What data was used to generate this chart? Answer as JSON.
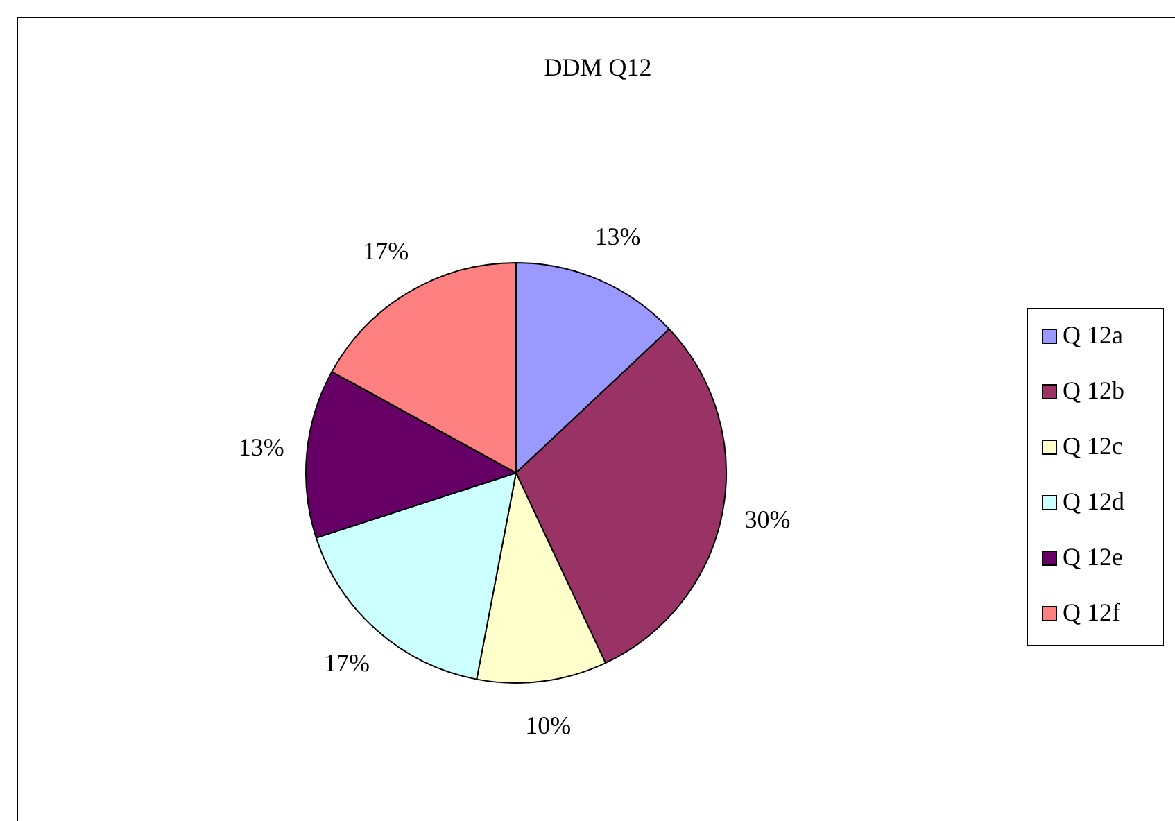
{
  "chart_data": {
    "type": "pie",
    "title": "DDM Q12",
    "categories": [
      "Q 12a",
      "Q 12b",
      "Q 12c",
      "Q 12d",
      "Q 12e",
      "Q 12f"
    ],
    "values": [
      13,
      30,
      10,
      17,
      13,
      17
    ],
    "value_labels": [
      "13%",
      "30%",
      "10%",
      "17%",
      "13%",
      "17%"
    ],
    "colors": [
      "#9999ff",
      "#993366",
      "#ffffcc",
      "#ccffff",
      "#660066",
      "#ff8080"
    ],
    "legend": "right"
  }
}
